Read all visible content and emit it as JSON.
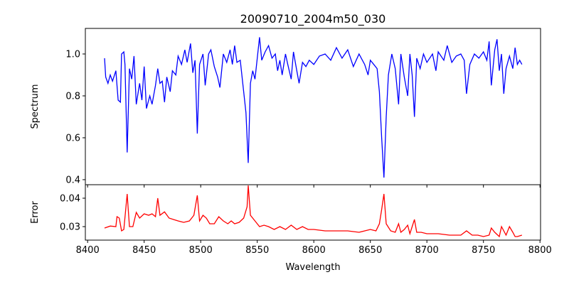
{
  "chart_data": [
    {
      "type": "line",
      "title": "20090710_2004m50_030",
      "xlabel": "",
      "ylabel": "Spectrum",
      "xlim": [
        8398,
        8800.5
      ],
      "ylim": [
        0.376,
        1.122
      ],
      "xticks": [
        8400,
        8450,
        8500,
        8550,
        8600,
        8650,
        8700,
        8750,
        8800
      ],
      "yticks": [
        0.4,
        0.6,
        0.8,
        1.0
      ],
      "ytick_labels": [
        "0.4",
        "0.6",
        "0.8",
        "1.0"
      ],
      "grid": false,
      "series": [
        {
          "name": "Spectrum",
          "color": "#0000ff",
          "x": [
            8415,
            8416,
            8418,
            8420,
            8422,
            8425,
            8427,
            8429,
            8430,
            8432,
            8433,
            8435,
            8437,
            8439,
            8441,
            8443,
            8446,
            8448,
            8450,
            8452,
            8455,
            8457,
            8460,
            8462,
            8464,
            8466,
            8468,
            8470,
            8473,
            8475,
            8478,
            8480,
            8483,
            8486,
            8488,
            8491,
            8493,
            8495,
            8497,
            8499,
            8502,
            8504,
            8507,
            8509,
            8512,
            8515,
            8517,
            8520,
            8523,
            8526,
            8528,
            8530,
            8532,
            8535,
            8538,
            8540,
            8542,
            8544,
            8546,
            8548,
            8550,
            8552,
            8554,
            8557,
            8560,
            8563,
            8566,
            8568,
            8570,
            8572,
            8575,
            8577,
            8580,
            8582,
            8585,
            8587,
            8590,
            8593,
            8596,
            8600,
            8605,
            8610,
            8615,
            8620,
            8625,
            8630,
            8635,
            8640,
            8645,
            8648,
            8650,
            8653,
            8656,
            8658,
            8660,
            8662,
            8664,
            8666,
            8669,
            8672,
            8675,
            8677,
            8680,
            8683,
            8685,
            8687,
            8689,
            8691,
            8694,
            8697,
            8700,
            8705,
            8708,
            8710,
            8715,
            8718,
            8722,
            8726,
            8730,
            8733,
            8735,
            8738,
            8742,
            8746,
            8750,
            8753,
            8755,
            8757,
            8760,
            8762,
            8764,
            8766,
            8768,
            8770,
            8773,
            8776,
            8778,
            8780,
            8782,
            8784
          ],
          "y": [
            0.98,
            0.89,
            0.86,
            0.9,
            0.87,
            0.92,
            0.78,
            0.77,
            1.0,
            1.01,
            0.95,
            0.53,
            0.93,
            0.88,
            0.99,
            0.76,
            0.86,
            0.78,
            0.94,
            0.74,
            0.8,
            0.76,
            0.85,
            0.93,
            0.86,
            0.87,
            0.77,
            0.89,
            0.82,
            0.92,
            0.9,
            0.99,
            0.95,
            1.02,
            0.96,
            1.05,
            0.91,
            0.97,
            0.62,
            0.95,
            1.0,
            0.85,
            1.0,
            1.02,
            0.94,
            0.89,
            0.84,
            1.0,
            0.96,
            1.02,
            0.95,
            1.04,
            0.96,
            0.97,
            0.82,
            0.72,
            0.48,
            0.86,
            0.92,
            0.88,
            0.98,
            1.08,
            0.97,
            1.01,
            1.04,
            0.98,
            1.0,
            0.92,
            0.97,
            0.9,
            1.0,
            0.95,
            0.88,
            1.01,
            0.92,
            0.86,
            0.96,
            0.94,
            0.97,
            0.95,
            0.99,
            1.0,
            0.97,
            1.03,
            0.98,
            1.02,
            0.94,
            1.0,
            0.95,
            0.9,
            0.97,
            0.95,
            0.93,
            0.82,
            0.6,
            0.41,
            0.7,
            0.9,
            1.0,
            0.93,
            0.76,
            1.0,
            0.89,
            0.8,
            1.0,
            0.9,
            0.7,
            0.98,
            0.93,
            1.0,
            0.96,
            1.0,
            0.92,
            1.01,
            0.97,
            1.04,
            0.96,
            0.99,
            1.0,
            0.97,
            0.81,
            0.95,
            1.0,
            0.98,
            1.01,
            0.97,
            1.06,
            0.85,
            1.02,
            1.07,
            0.92,
            1.0,
            0.81,
            0.93,
            0.99,
            0.93,
            1.03,
            0.95,
            0.97,
            0.95
          ]
        }
      ]
    },
    {
      "type": "line",
      "title": "",
      "xlabel": "Wavelength",
      "ylabel": "Error",
      "xlim": [
        8398,
        8800.5
      ],
      "ylim": [
        0.02525,
        0.04475
      ],
      "xticks": [
        8400,
        8450,
        8500,
        8550,
        8600,
        8650,
        8700,
        8750,
        8800
      ],
      "xtick_labels": [
        "8400",
        "8450",
        "8500",
        "8550",
        "8600",
        "8650",
        "8700",
        "8750",
        "8800"
      ],
      "yticks": [
        0.03,
        0.04
      ],
      "ytick_labels": [
        "0.03",
        "0.04"
      ],
      "grid": false,
      "series": [
        {
          "name": "Error",
          "color": "#ff0000",
          "x": [
            8415,
            8420,
            8425,
            8426,
            8428,
            8430,
            8432,
            8435,
            8437,
            8440,
            8443,
            8446,
            8450,
            8454,
            8457,
            8460,
            8462,
            8464,
            8468,
            8472,
            8476,
            8480,
            8485,
            8490,
            8494,
            8497,
            8499,
            8502,
            8505,
            8508,
            8512,
            8516,
            8520,
            8524,
            8527,
            8530,
            8534,
            8538,
            8541,
            8542,
            8544,
            8548,
            8552,
            8556,
            8560,
            8565,
            8570,
            8575,
            8580,
            8585,
            8590,
            8595,
            8600,
            8610,
            8620,
            8630,
            8640,
            8650,
            8655,
            8658,
            8660,
            8662,
            8664,
            8668,
            8672,
            8675,
            8677,
            8680,
            8683,
            8685,
            8689,
            8691,
            8695,
            8700,
            8710,
            8720,
            8730,
            8735,
            8740,
            8745,
            8750,
            8755,
            8757,
            8760,
            8764,
            8766,
            8770,
            8773,
            8776,
            8778,
            8780,
            8784
          ],
          "y": [
            0.0295,
            0.0302,
            0.03,
            0.0335,
            0.033,
            0.0285,
            0.029,
            0.0415,
            0.03,
            0.03,
            0.035,
            0.033,
            0.0345,
            0.034,
            0.0345,
            0.0335,
            0.04,
            0.034,
            0.0352,
            0.033,
            0.0325,
            0.032,
            0.0315,
            0.032,
            0.034,
            0.041,
            0.032,
            0.034,
            0.033,
            0.031,
            0.031,
            0.0335,
            0.032,
            0.031,
            0.032,
            0.031,
            0.0315,
            0.033,
            0.037,
            0.0445,
            0.034,
            0.032,
            0.03,
            0.0305,
            0.03,
            0.029,
            0.03,
            0.029,
            0.0305,
            0.029,
            0.03,
            0.029,
            0.029,
            0.0285,
            0.0285,
            0.0285,
            0.028,
            0.029,
            0.0285,
            0.031,
            0.036,
            0.0415,
            0.031,
            0.0285,
            0.028,
            0.031,
            0.028,
            0.029,
            0.0305,
            0.0275,
            0.0325,
            0.028,
            0.028,
            0.0275,
            0.0275,
            0.027,
            0.027,
            0.0285,
            0.027,
            0.027,
            0.0265,
            0.027,
            0.0295,
            0.028,
            0.0265,
            0.03,
            0.027,
            0.03,
            0.028,
            0.0265,
            0.0265,
            0.027
          ]
        }
      ]
    }
  ]
}
